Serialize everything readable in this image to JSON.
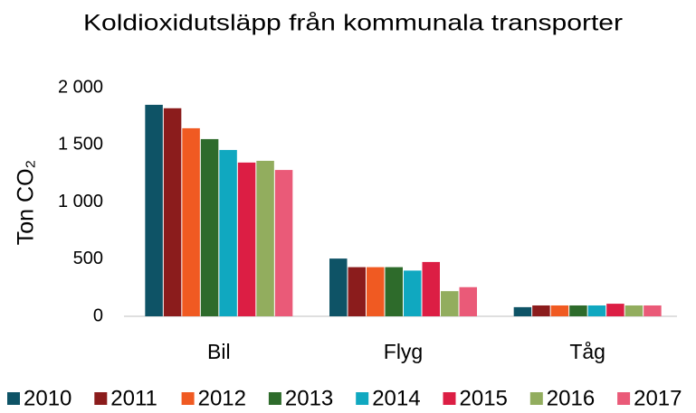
{
  "chart_data": {
    "type": "bar",
    "title": "Koldioxidutsläpp från kommunala transporter",
    "y_label": "Ton CO₂",
    "categories": [
      "Bil",
      "Flyg",
      "Tåg"
    ],
    "series": [
      {
        "name": "2010",
        "color": "#0e5366",
        "values": [
          1850,
          505,
          80
        ]
      },
      {
        "name": "2011",
        "color": "#8b1c1c",
        "values": [
          1820,
          430,
          95
        ]
      },
      {
        "name": "2012",
        "color": "#f05a22",
        "values": [
          1645,
          430,
          95
        ]
      },
      {
        "name": "2013",
        "color": "#2e6b2b",
        "values": [
          1550,
          430,
          95
        ]
      },
      {
        "name": "2014",
        "color": "#10a8c0",
        "values": [
          1455,
          400,
          95
        ]
      },
      {
        "name": "2015",
        "color": "#dc1e44",
        "values": [
          1345,
          475,
          110
        ]
      },
      {
        "name": "2016",
        "color": "#92ad5e",
        "values": [
          1360,
          220,
          95
        ]
      },
      {
        "name": "2017",
        "color": "#ea5a78",
        "values": [
          1280,
          255,
          95
        ]
      }
    ],
    "ylim": [
      0,
      2000
    ],
    "yticks": [
      0,
      500,
      {
        "value": 1000,
        "label": "1 000"
      },
      {
        "value": 1500,
        "label": "1 500"
      },
      {
        "value": 2000,
        "label": "2 000"
      }
    ],
    "grid": false,
    "legend": "bottom"
  }
}
